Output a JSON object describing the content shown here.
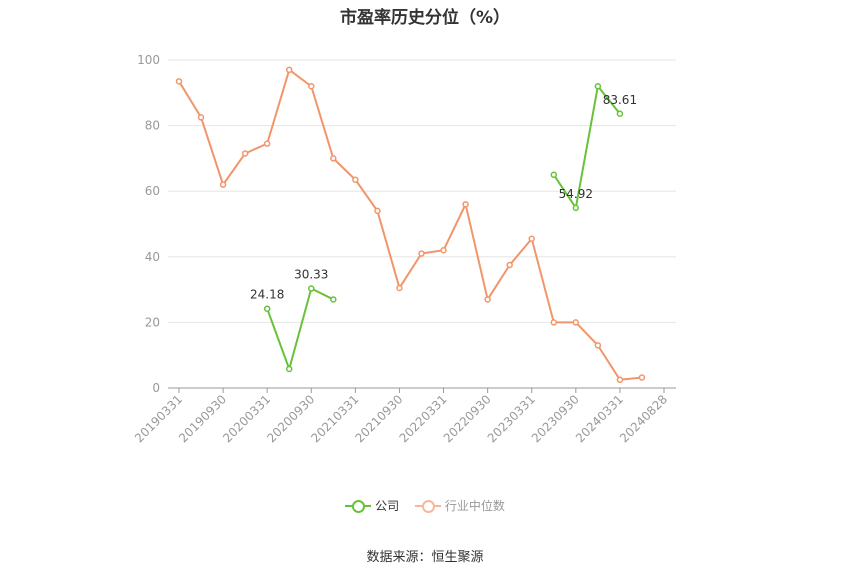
{
  "chart_data": {
    "type": "line",
    "title": "市盈率历史分位（%）",
    "xlabel": "",
    "ylabel": "",
    "ylim": [
      0,
      100
    ],
    "y_ticks": [
      0,
      20,
      40,
      60,
      80,
      100
    ],
    "grid": true,
    "legend_position": "bottom",
    "x": [
      "20190331",
      "20190630",
      "20190930",
      "20191231",
      "20200331",
      "20200630",
      "20200930",
      "20201231",
      "20210331",
      "20210630",
      "20210930",
      "20211231",
      "20220331",
      "20220630",
      "20220930",
      "20221231",
      "20230331",
      "20230630",
      "20230930",
      "20231231",
      "20240331",
      "20240630",
      "20240828"
    ],
    "x_tick_labels": [
      "20190331",
      "20190930",
      "20200331",
      "20200930",
      "20210331",
      "20210930",
      "20220331",
      "20220930",
      "20230331",
      "20230930",
      "20240331",
      "20240828"
    ],
    "series": [
      {
        "name": "公司",
        "color": "#67c23a",
        "values": [
          null,
          null,
          null,
          null,
          24.18,
          5.8,
          30.33,
          27.0,
          null,
          null,
          null,
          null,
          null,
          null,
          null,
          null,
          null,
          65.0,
          54.92,
          92.0,
          83.61,
          null,
          null
        ],
        "labels": [
          {
            "index": 4,
            "text": "24.18"
          },
          {
            "index": 6,
            "text": "30.33"
          },
          {
            "index": 18,
            "text": "54.92"
          },
          {
            "index": 20,
            "text": "83.61"
          }
        ]
      },
      {
        "name": "行业中位数",
        "color": "#f2956a",
        "values": [
          93.5,
          82.5,
          62.0,
          71.5,
          74.5,
          97.0,
          92.0,
          70.0,
          63.5,
          54.0,
          30.5,
          41.0,
          42.0,
          56.0,
          27.0,
          37.5,
          45.5,
          20.0,
          20.0,
          13.0,
          2.5,
          3.2,
          null
        ]
      }
    ]
  },
  "source_text": "数据来源：恒生聚源"
}
